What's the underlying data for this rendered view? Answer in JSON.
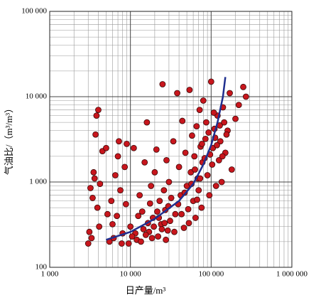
{
  "chart_data": {
    "type": "scatter",
    "xlabel": "日产量/m³",
    "ylabel": "气油比/（m³/m³）",
    "xscale": "log",
    "yscale": "log",
    "xlim": [
      1000,
      1000000
    ],
    "ylim": [
      100,
      100000
    ],
    "xticks": [
      {
        "value": 1000,
        "label": "1 000"
      },
      {
        "value": 10000,
        "label": "10 000"
      },
      {
        "value": 100000,
        "label": "100 000"
      },
      {
        "value": 1000000,
        "label": "1 000 000"
      }
    ],
    "yticks": [
      100,
      {
        "value": 1000,
        "label": "1 000"
      },
      {
        "value": 10000,
        "label": "10 000"
      },
      {
        "value": 100000,
        "label": "100 000"
      }
    ],
    "x_minor_ticks": [
      2000,
      3000,
      4000,
      5000,
      6000,
      7000,
      8000,
      9000,
      20000,
      30000,
      40000,
      50000,
      60000,
      70000,
      80000,
      90000,
      200000,
      300000,
      400000,
      500000,
      600000,
      700000,
      800000,
      900000
    ],
    "y_minor_ticks": [
      200,
      300,
      400,
      500,
      600,
      700,
      800,
      900,
      2000,
      3000,
      4000,
      5000,
      6000,
      7000,
      8000,
      9000,
      20000,
      30000,
      40000,
      50000,
      60000,
      70000,
      80000,
      90000
    ],
    "grid": true,
    "color": "#c8161d",
    "x": [
      3000,
      3100,
      3200,
      3300,
      3500,
      3700,
      3800,
      4000,
      4200,
      4500,
      3900,
      4100,
      3600,
      3400,
      5000,
      5200,
      5500,
      6000,
      6500,
      7000,
      7500,
      8000,
      8500,
      9000,
      5800,
      6200,
      6800,
      7200,
      7800,
      8800,
      10000,
      11000,
      12000,
      13000,
      14000,
      15000,
      16000,
      17000,
      18000,
      19000,
      20000,
      21000,
      22000,
      23000,
      24000,
      25000,
      26000,
      27000,
      28000,
      29000,
      30000,
      32000,
      34000,
      36000,
      38000,
      40000,
      42000,
      44000,
      46000,
      48000,
      50000,
      52000,
      54000,
      56000,
      58000,
      60000,
      62000,
      64000,
      66000,
      68000,
      70000,
      72000,
      74000,
      76000,
      78000,
      80000,
      85000,
      90000,
      95000,
      100000,
      105000,
      110000,
      115000,
      120000,
      125000,
      130000,
      135000,
      140000,
      150000,
      160000,
      170000,
      180000,
      200000,
      220000,
      250000,
      270000,
      11500,
      13500,
      16500,
      18500,
      21500,
      24500,
      27500,
      31000,
      35000,
      39000,
      43000,
      47000,
      53000,
      57000,
      63000,
      67000,
      73000,
      77000,
      83000,
      87000,
      93000,
      97000,
      103000,
      108000,
      112000,
      118000,
      128000,
      138000,
      145000,
      155000,
      9500,
      10500,
      12500,
      14500,
      15500,
      17500,
      19500,
      22500,
      26500,
      29500
    ],
    "y": [
      190,
      260,
      850,
      220,
      1300,
      3600,
      6000,
      7000,
      950,
      2300,
      500,
      300,
      1100,
      650,
      2500,
      420,
      200,
      320,
      1200,
      2000,
      800,
      250,
      1500,
      2800,
      600,
      220,
      400,
      3000,
      190,
      550,
      300,
      2500,
      210,
      700,
      450,
      1700,
      5000,
      260,
      900,
      380,
      1300,
      2400,
      230,
      600,
      320,
      14000,
      800,
      470,
      1800,
      270,
      1000,
      650,
      3000,
      420,
      11000,
      1500,
      700,
      5200,
      290,
      2200,
      900,
      480,
      12000,
      1300,
      3500,
      600,
      2000,
      380,
      4500,
      1100,
      800,
      7000,
      2600,
      500,
      1700,
      9000,
      3200,
      1200,
      700,
      15000,
      2500,
      4200,
      900,
      6000,
      1800,
      3000,
      1000,
      7500,
      2200,
      4000,
      11000,
      1400,
      5500,
      8000,
      13000,
      10000,
      250,
      200,
      330,
      220,
      450,
      280,
      210,
      350,
      260,
      550,
      420,
      750,
      330,
      950,
      1400,
      620,
      1100,
      2800,
      1900,
      5000,
      3800,
      2100,
      1600,
      6500,
      3300,
      2700,
      4600,
      2000,
      5000,
      3600,
      190,
      230,
      400,
      280,
      240,
      560,
      300,
      380,
      330,
      520
    ],
    "curve": {
      "color": "#1f2f8f",
      "x": [
        5000,
        10000,
        20000,
        40000,
        60000,
        80000,
        100000,
        120000,
        140000,
        150000
      ],
      "y": [
        210,
        260,
        370,
        600,
        950,
        1600,
        2700,
        5000,
        10000,
        17000
      ]
    }
  }
}
